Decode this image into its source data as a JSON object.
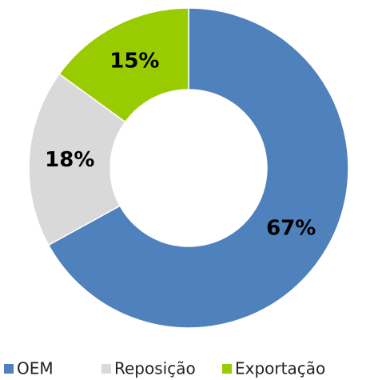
{
  "chart_data": {
    "type": "donut",
    "categories": [
      "OEM",
      "Reposição",
      "Exportação"
    ],
    "values": [
      67,
      18,
      15
    ],
    "value_labels": [
      "67%",
      "18%",
      "15%"
    ],
    "colors": [
      "#4f81bd",
      "#d9d9d9",
      "#99cc00"
    ]
  }
}
